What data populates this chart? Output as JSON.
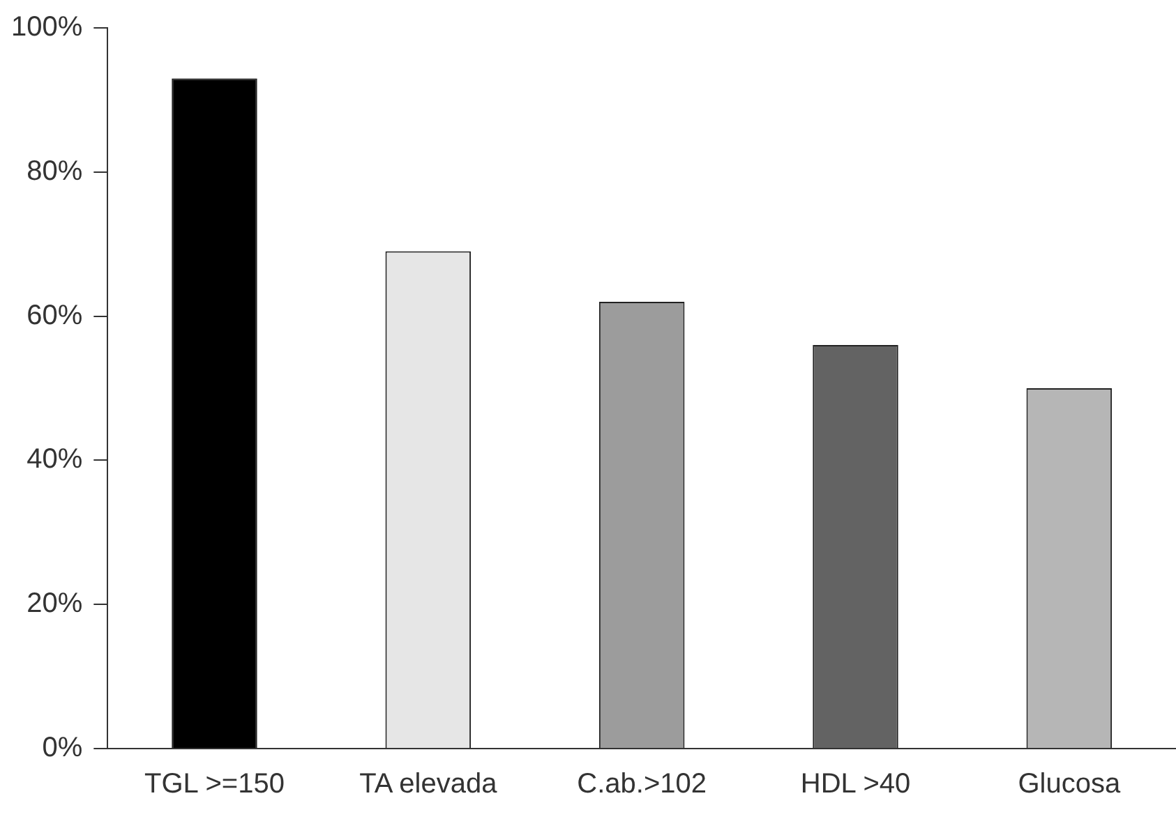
{
  "chart_data": {
    "type": "bar",
    "categories": [
      "TGL >=150",
      "TA elevada",
      "C.ab.>102",
      "HDL >40",
      "Glucosa"
    ],
    "values": [
      93,
      69,
      62,
      56,
      50
    ],
    "colors": [
      "#000000",
      "#e6e6e6",
      "#9c9c9c",
      "#636363",
      "#b6b6b6"
    ],
    "ylim": [
      0,
      100
    ],
    "yticks": [
      {
        "value": 0,
        "label": "0%"
      },
      {
        "value": 20,
        "label": "20%"
      },
      {
        "value": 40,
        "label": "40%"
      },
      {
        "value": 60,
        "label": "60%"
      },
      {
        "value": 80,
        "label": "80%"
      },
      {
        "value": 100,
        "label": "100%"
      }
    ],
    "grid": false,
    "legend": false
  }
}
